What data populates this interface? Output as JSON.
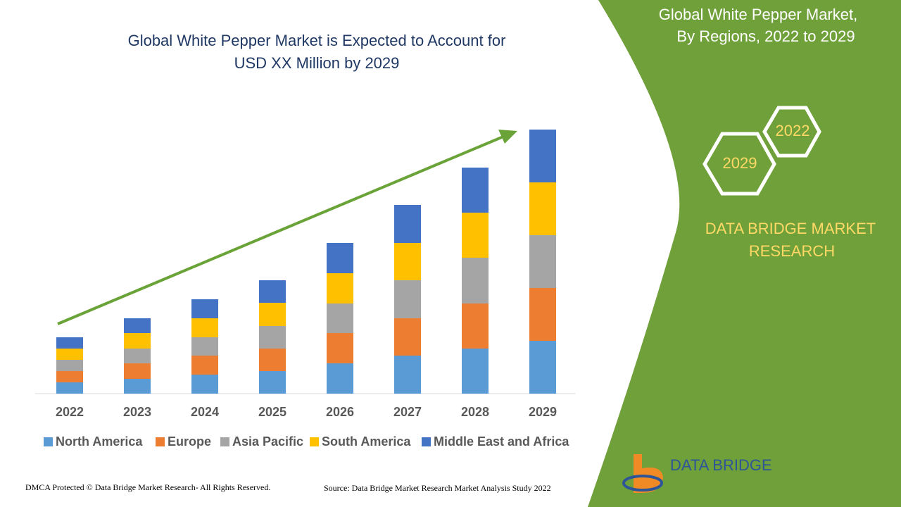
{
  "chart_data": {
    "type": "stacked-bar",
    "title": "Global White Pepper Market is Expected to Account for",
    "subtitle": "USD XX Million by 2029",
    "categories": [
      "2022",
      "2023",
      "2024",
      "2025",
      "2026",
      "2027",
      "2028",
      "2029"
    ],
    "series": [
      {
        "name": "North America",
        "color": "#5b9bd5",
        "values": [
          16,
          21,
          27,
          32,
          43,
          54,
          64,
          75
        ]
      },
      {
        "name": "Europe",
        "color": "#ed7d31",
        "values": [
          16,
          22,
          27,
          32,
          43,
          53,
          64,
          75
        ]
      },
      {
        "name": "Asia Pacific",
        "color": "#a5a5a5",
        "values": [
          16,
          21,
          26,
          32,
          42,
          54,
          65,
          75
        ]
      },
      {
        "name": "South America",
        "color": "#ffc000",
        "values": [
          16,
          22,
          27,
          33,
          43,
          53,
          64,
          75
        ]
      },
      {
        "name": "Middle East and Africa",
        "color": "#4472c4",
        "values": [
          16,
          21,
          27,
          32,
          43,
          54,
          64,
          75
        ]
      }
    ],
    "ylim": [
      0,
      400
    ],
    "legend": "bottom"
  },
  "side_panel": {
    "title_line1": "Global White Pepper Market,",
    "title_line2": "By Regions, 2022 to 2029",
    "hex_top": "2022",
    "hex_bottom": "2029",
    "brand_line1": "DATA BRIDGE MARKET",
    "brand_line2": "RESEARCH",
    "logo": "DATA BRIDGE"
  },
  "footer": {
    "left": "DMCA Protected © Data Bridge Market Research- All Rights Reserved.",
    "right": "Source: Data Bridge Market Research Market Analysis Study 2022"
  }
}
